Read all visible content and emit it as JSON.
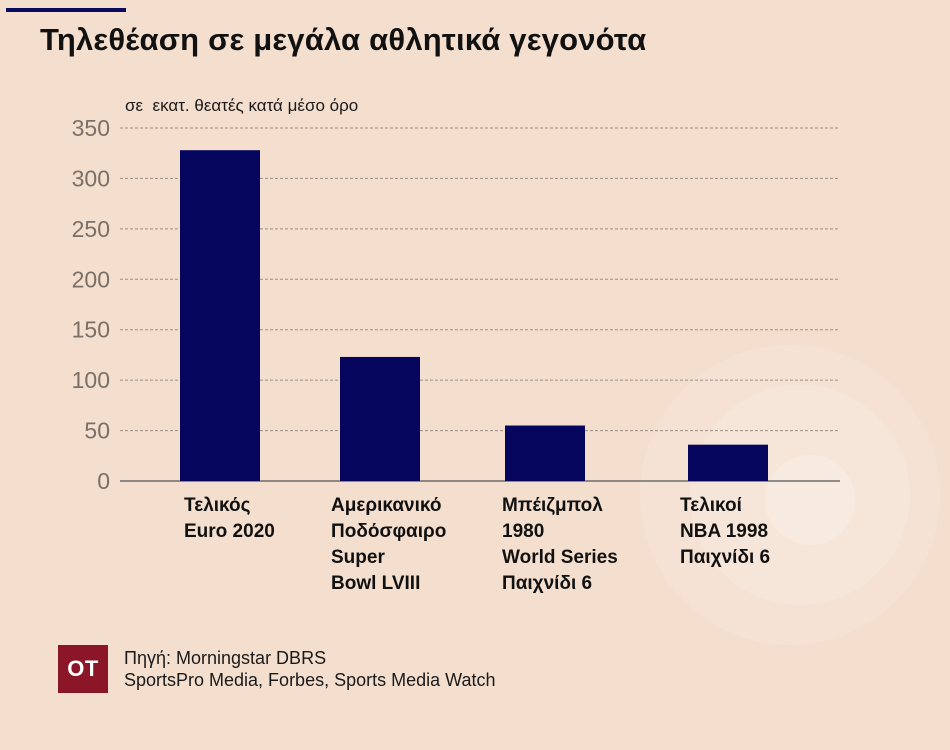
{
  "chart_data": {
    "type": "bar",
    "title": "Τηλεθέαση σε μεγάλα αθλητικά γεγονότα",
    "subtitle": "σε  εκατ. θεατές κατά μέσο όρο",
    "categories": [
      "Τελικός\nEuro 2020",
      "Αμερικανικό\nΠοδόσφαιρο\nSuper\nBowl LVIII",
      "Μπέιζμπολ\n1980\nWorld Series\nΠαιχνίδι 6",
      "Τελικοί\nNBA 1998\nΠαιχνίδι 6"
    ],
    "values": [
      328,
      123,
      55,
      36
    ],
    "ylim": [
      0,
      350
    ],
    "yticks": [
      "0",
      "50",
      "100",
      "150",
      "200",
      "250",
      "300",
      "350"
    ],
    "grid": true,
    "bar_color": "#05055e"
  },
  "source": {
    "line1": "Πηγή: Morningstar DBRS",
    "line2": "SportsPro Media, Forbes, Sports Media Watch"
  },
  "logo": {
    "text": "OT",
    "color": "#8b1628"
  }
}
